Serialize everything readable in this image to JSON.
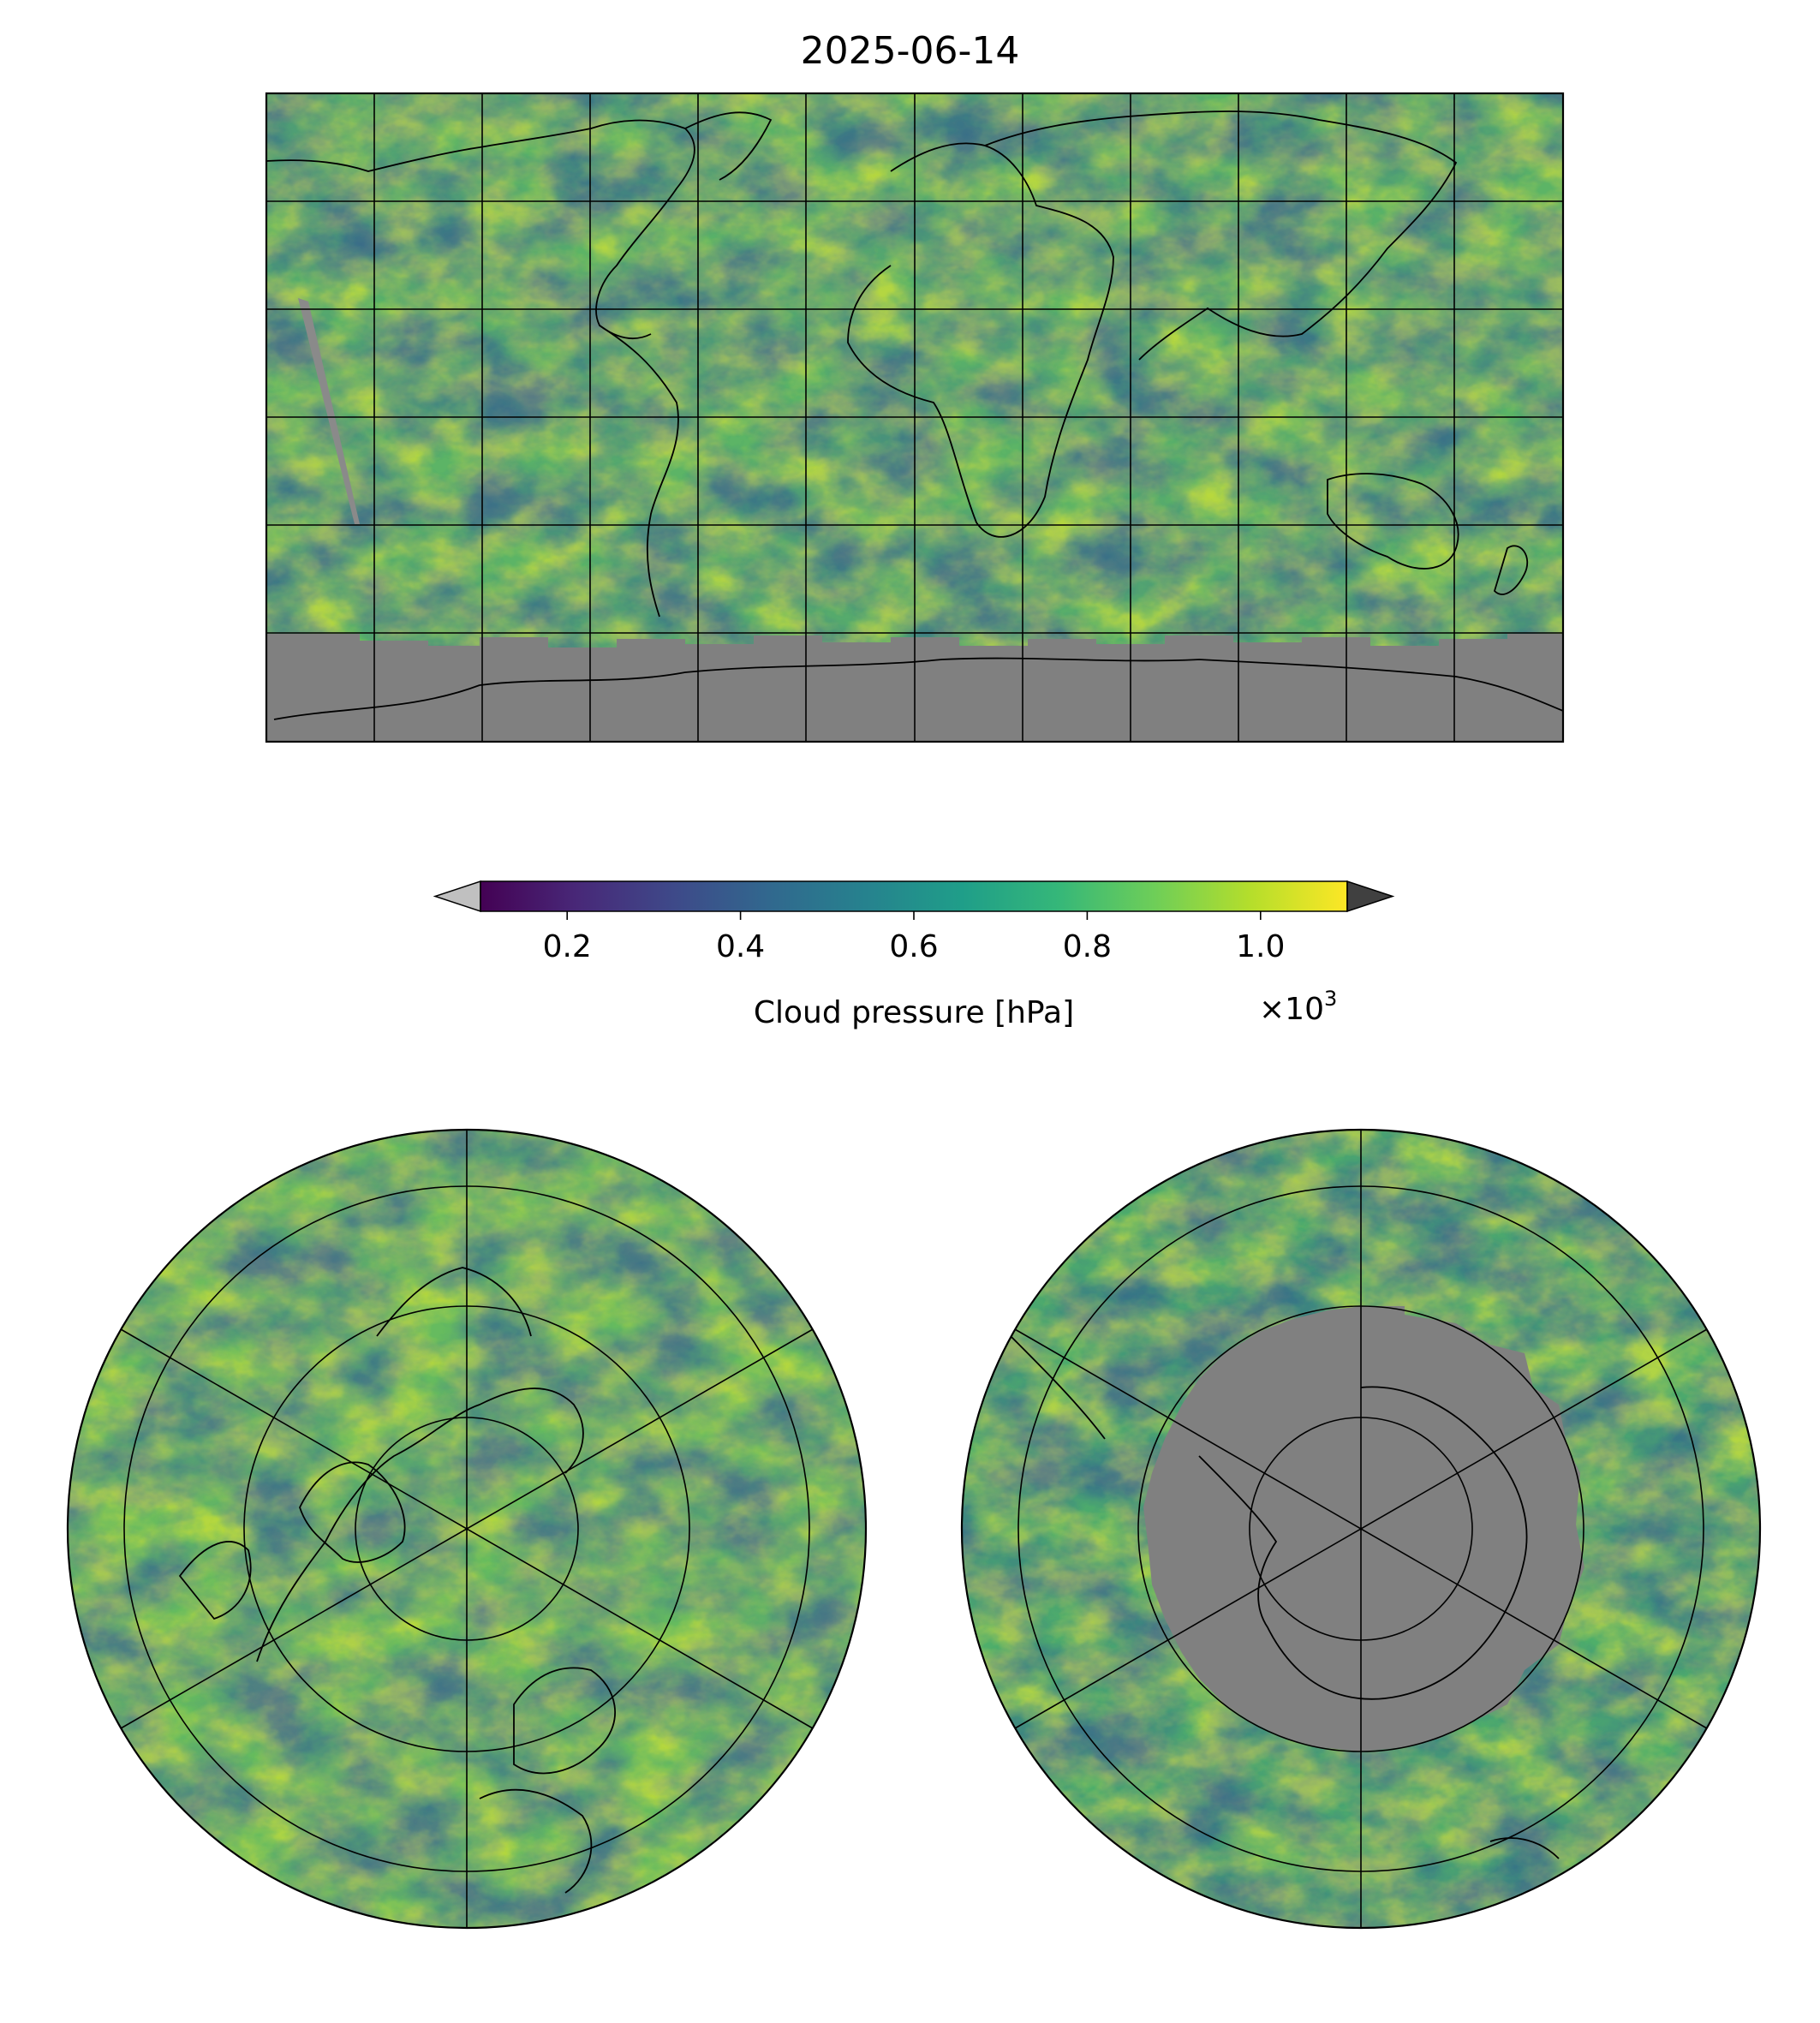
{
  "title": "2025-06-14",
  "colorbar": {
    "label": "Cloud pressure [hPa]",
    "multiplier": "×10",
    "multiplier_exponent": "3",
    "ticks": [
      {
        "value": 0.2,
        "label": "0.2"
      },
      {
        "value": 0.4,
        "label": "0.4"
      },
      {
        "value": 0.6,
        "label": "0.6"
      },
      {
        "value": 0.8,
        "label": "0.8"
      },
      {
        "value": 1.0,
        "label": "1.0"
      }
    ],
    "range": [
      0.1,
      1.1
    ],
    "colormap": "viridis",
    "under_color": "#c0c0c0",
    "over_color": "#404040",
    "nodata_color": "#808080"
  },
  "maps": [
    {
      "name": "global-map",
      "projection": "plate-carree"
    },
    {
      "name": "north-polar-map",
      "projection": "north-polar-stereographic"
    },
    {
      "name": "south-polar-map",
      "projection": "south-polar-stereographic"
    }
  ],
  "colors": {
    "viridis": [
      "#440154",
      "#482878",
      "#3e4989",
      "#31688e",
      "#26828e",
      "#1f9e89",
      "#35b779",
      "#6ece58",
      "#b5de2b",
      "#fde725"
    ]
  }
}
